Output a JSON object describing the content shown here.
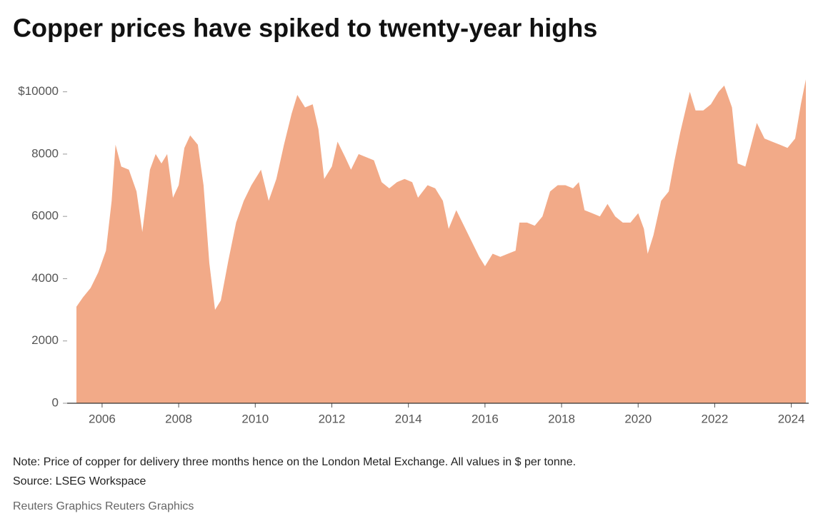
{
  "chart_data": {
    "type": "area",
    "title": "Copper prices have spiked to twenty-year highs",
    "note": "Note: Price of copper for delivery three months hence on the London Metal Exchange. All values in $ per tonne.",
    "source": "Source: LSEG Workspace",
    "credit": "Reuters Graphics Reuters Graphics",
    "color": "#f2aa88",
    "x": [
      2005.33,
      2005.5,
      2005.7,
      2005.9,
      2006.1,
      2006.25,
      2006.35,
      2006.5,
      2006.7,
      2006.9,
      2007.05,
      2007.25,
      2007.4,
      2007.55,
      2007.7,
      2007.85,
      2008.0,
      2008.15,
      2008.3,
      2008.5,
      2008.65,
      2008.8,
      2008.95,
      2009.1,
      2009.3,
      2009.5,
      2009.7,
      2009.9,
      2010.15,
      2010.35,
      2010.55,
      2010.75,
      2010.95,
      2011.1,
      2011.3,
      2011.5,
      2011.65,
      2011.8,
      2012.0,
      2012.15,
      2012.35,
      2012.5,
      2012.7,
      2012.9,
      2013.1,
      2013.3,
      2013.5,
      2013.7,
      2013.9,
      2014.1,
      2014.25,
      2014.5,
      2014.7,
      2014.9,
      2015.05,
      2015.25,
      2015.45,
      2015.65,
      2015.85,
      2016.0,
      2016.2,
      2016.4,
      2016.6,
      2016.8,
      2016.9,
      2017.1,
      2017.3,
      2017.5,
      2017.7,
      2017.9,
      2018.1,
      2018.3,
      2018.45,
      2018.6,
      2018.8,
      2019.0,
      2019.2,
      2019.4,
      2019.6,
      2019.8,
      2020.0,
      2020.15,
      2020.25,
      2020.4,
      2020.6,
      2020.8,
      2020.95,
      2021.1,
      2021.35,
      2021.5,
      2021.7,
      2021.9,
      2022.1,
      2022.25,
      2022.45,
      2022.6,
      2022.8,
      2022.95,
      2023.1,
      2023.3,
      2023.5,
      2023.7,
      2023.9,
      2024.1,
      2024.25,
      2024.38
    ],
    "values": [
      3100,
      3400,
      3700,
      4200,
      4900,
      6500,
      8300,
      7600,
      7500,
      6800,
      5500,
      7500,
      8000,
      7700,
      8000,
      6600,
      7000,
      8200,
      8600,
      8300,
      7000,
      4500,
      3000,
      3300,
      4600,
      5800,
      6500,
      7000,
      7500,
      6500,
      7200,
      8300,
      9300,
      9900,
      9500,
      9600,
      8800,
      7200,
      7600,
      8400,
      7900,
      7500,
      8000,
      7900,
      7800,
      7100,
      6900,
      7100,
      7200,
      7100,
      6600,
      7000,
      6900,
      6500,
      5600,
      6200,
      5700,
      5200,
      4700,
      4400,
      4800,
      4700,
      4800,
      4900,
      5800,
      5800,
      5700,
      6000,
      6800,
      7000,
      7000,
      6900,
      7100,
      6200,
      6100,
      6000,
      6400,
      6000,
      5800,
      5800,
      6100,
      5600,
      4800,
      5400,
      6500,
      6800,
      7800,
      8700,
      10000,
      9400,
      9400,
      9600,
      10000,
      10200,
      9500,
      7700,
      7600,
      8300,
      9000,
      8500,
      8400,
      8300,
      8200,
      8500,
      9600,
      10400
    ],
    "xlim": [
      2005.33,
      2024.38
    ],
    "xticks": [
      2006,
      2008,
      2010,
      2012,
      2014,
      2016,
      2018,
      2020,
      2022,
      2024
    ],
    "ylim": [
      0,
      11000
    ],
    "yticks": [
      0,
      2000,
      4000,
      6000,
      8000,
      {
        "value": 10000,
        "label": "$10000"
      }
    ]
  }
}
